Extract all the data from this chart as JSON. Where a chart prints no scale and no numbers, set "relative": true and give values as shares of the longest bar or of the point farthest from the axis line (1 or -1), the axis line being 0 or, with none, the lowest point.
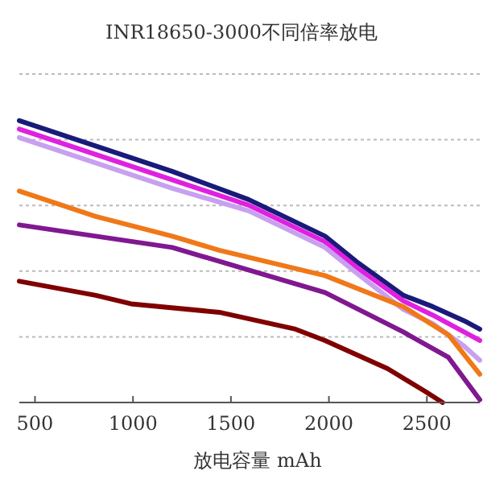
{
  "chart_data": {
    "type": "line",
    "title": "INR18650-3000不同倍率放电",
    "xlabel": "放电容量 mAh",
    "relative": true,
    "grid": "y",
    "xlim": [
      420,
      2770
    ],
    "xticks": [
      500,
      1000,
      1500,
      2000,
      2500
    ],
    "series": [
      {
        "color": "#1a1a7a",
        "x": [
          420,
          810,
          1200,
          1590,
          1980,
          2140,
          2380,
          2530,
          2690,
          2770
        ],
        "values": [
          1.0,
          0.91,
          0.82,
          0.72,
          0.59,
          0.5,
          0.38,
          0.34,
          0.29,
          0.26
        ]
      },
      {
        "color": "#e020e0",
        "x": [
          420,
          810,
          1200,
          1590,
          1980,
          2140,
          2380,
          2530,
          2690,
          2770
        ],
        "values": [
          0.97,
          0.88,
          0.79,
          0.7,
          0.57,
          0.48,
          0.36,
          0.31,
          0.25,
          0.22
        ]
      },
      {
        "color": "#c8a0f0",
        "x": [
          420,
          810,
          1200,
          1590,
          1980,
          2140,
          2380,
          2530,
          2690,
          2770
        ],
        "values": [
          0.94,
          0.85,
          0.76,
          0.68,
          0.55,
          0.46,
          0.33,
          0.28,
          0.2,
          0.15
        ]
      },
      {
        "color": "#f07818",
        "x": [
          420,
          810,
          1200,
          1440,
          1980,
          2380,
          2610,
          2770
        ],
        "values": [
          0.75,
          0.66,
          0.59,
          0.54,
          0.45,
          0.34,
          0.24,
          0.1
        ]
      },
      {
        "color": "#801890",
        "x": [
          420,
          1200,
          1590,
          1980,
          2380,
          2610,
          2770
        ],
        "values": [
          0.63,
          0.55,
          0.47,
          0.39,
          0.25,
          0.16,
          0.01
        ]
      },
      {
        "color": "#800000",
        "x": [
          420,
          810,
          990,
          1440,
          1830,
          1980,
          2300,
          2490,
          2580
        ],
        "values": [
          0.43,
          0.38,
          0.35,
          0.32,
          0.26,
          0.22,
          0.12,
          0.04,
          0
        ]
      }
    ]
  }
}
